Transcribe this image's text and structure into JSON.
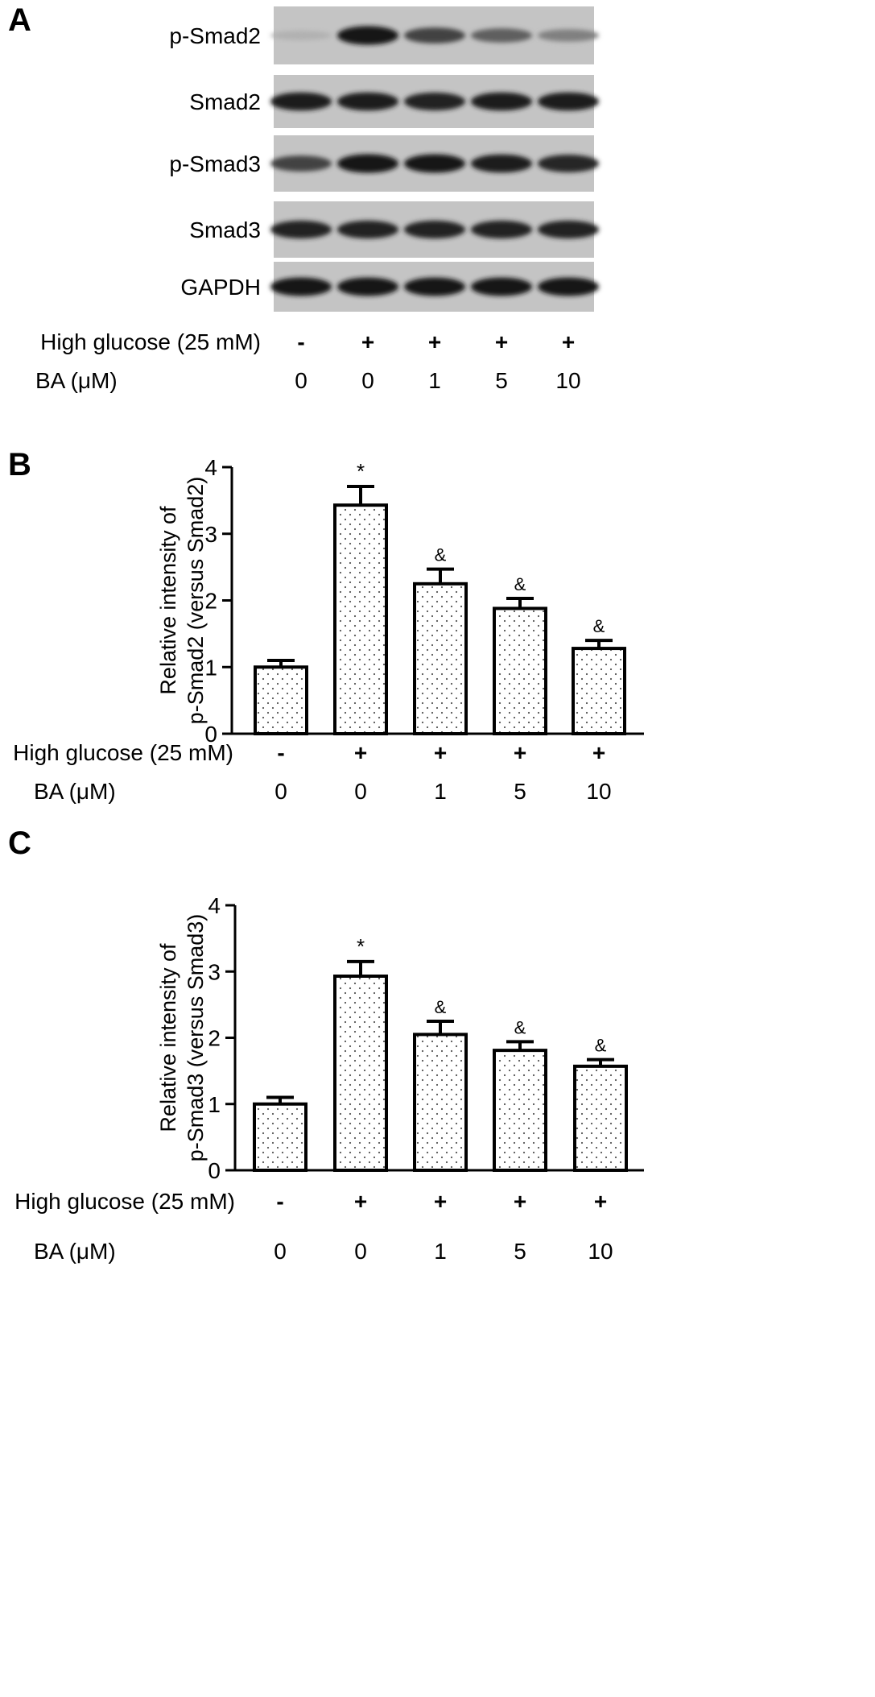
{
  "panel_a": {
    "label": "A",
    "blot_rows": [
      {
        "name": "p-Smad2",
        "intensity": [
          0.12,
          0.95,
          0.7,
          0.55,
          0.38
        ]
      },
      {
        "name": "Smad2",
        "intensity": [
          0.9,
          0.9,
          0.88,
          0.9,
          0.9
        ]
      },
      {
        "name": "p-Smad3",
        "intensity": [
          0.7,
          0.95,
          0.93,
          0.9,
          0.85
        ]
      },
      {
        "name": "Smad3",
        "intensity": [
          0.88,
          0.88,
          0.88,
          0.88,
          0.88
        ]
      },
      {
        "name": "GAPDH",
        "intensity": [
          0.92,
          0.92,
          0.92,
          0.92,
          0.92
        ]
      }
    ],
    "conditions": {
      "high_glucose_label": "High glucose (25 mM)",
      "high_glucose_values": [
        "-",
        "+",
        "+",
        "+",
        "+"
      ],
      "ba_label": "BA (μM)",
      "ba_values": [
        "0",
        "0",
        "1",
        "5",
        "10"
      ]
    }
  },
  "chart_data": [
    {
      "type": "bar",
      "panel": "B",
      "ylabel_line1": "Relative intensity of",
      "ylabel_line2": "p-Smad2 (versus Smad2)",
      "ylim": [
        0,
        4
      ],
      "yticks": [
        "0",
        "1",
        "2",
        "3",
        "4"
      ],
      "categories": [
        "0",
        "0",
        "1",
        "5",
        "10"
      ],
      "values": [
        1.0,
        3.43,
        2.25,
        1.88,
        1.28
      ],
      "errors": [
        0.1,
        0.28,
        0.22,
        0.15,
        0.12
      ],
      "markers": [
        "",
        "*",
        "&",
        "&",
        "&"
      ],
      "high_glucose_label": "High glucose (25 mM)",
      "high_glucose_values": [
        "-",
        "+",
        "+",
        "+",
        "+"
      ],
      "ba_label": "BA (μM)",
      "ba_values": [
        "0",
        "0",
        "1",
        "5",
        "10"
      ]
    },
    {
      "type": "bar",
      "panel": "C",
      "ylabel_line1": "Relative intensity of",
      "ylabel_line2": "p-Smad3 (versus Smad3)",
      "ylim": [
        0,
        4
      ],
      "yticks": [
        "0",
        "1",
        "2",
        "3",
        "4"
      ],
      "categories": [
        "0",
        "0",
        "1",
        "5",
        "10"
      ],
      "values": [
        1.0,
        2.93,
        2.05,
        1.81,
        1.57
      ],
      "errors": [
        0.1,
        0.22,
        0.2,
        0.13,
        0.1
      ],
      "markers": [
        "",
        "*",
        "&",
        "&",
        "&"
      ],
      "high_glucose_label": "High glucose (25 mM)",
      "high_glucose_values": [
        "-",
        "+",
        "+",
        "+",
        "+"
      ],
      "ba_label": "BA (μM)",
      "ba_values": [
        "0",
        "0",
        "1",
        "5",
        "10"
      ]
    }
  ]
}
